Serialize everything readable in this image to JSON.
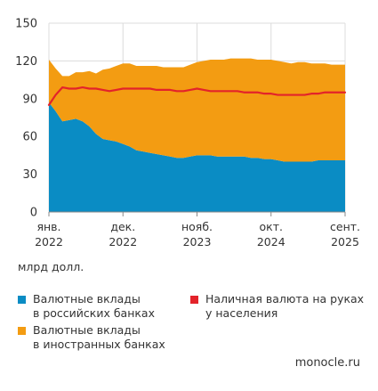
{
  "chart_data": {
    "type": "area",
    "stacked": true,
    "grid": true,
    "ylim": [
      0,
      150
    ],
    "yticks": [
      0,
      30,
      60,
      90,
      120,
      150
    ],
    "x_tick_labels": [
      {
        "x": 0,
        "line1": "янв.",
        "line2": "2022"
      },
      {
        "x": 11,
        "line1": "дек.",
        "line2": "2022"
      },
      {
        "x": 22,
        "line1": "нояб.",
        "line2": "2023"
      },
      {
        "x": 33,
        "line1": "окт.",
        "line2": "2024"
      },
      {
        "x": 44,
        "line1": "сент.",
        "line2": "2025"
      }
    ],
    "unit_label": "млрд долл.",
    "x": [
      "2022-01",
      "2022-02",
      "2022-03",
      "2022-04",
      "2022-05",
      "2022-06",
      "2022-07",
      "2022-08",
      "2022-09",
      "2022-10",
      "2022-11",
      "2022-12",
      "2023-01",
      "2023-02",
      "2023-03",
      "2023-04",
      "2023-05",
      "2023-06",
      "2023-07",
      "2023-08",
      "2023-09",
      "2023-10",
      "2023-11",
      "2023-12",
      "2024-01",
      "2024-02",
      "2024-03",
      "2024-04",
      "2024-05",
      "2024-06",
      "2024-07",
      "2024-08",
      "2024-09",
      "2024-10",
      "2024-11",
      "2024-12",
      "2025-01",
      "2025-02",
      "2025-03",
      "2025-04",
      "2025-05",
      "2025-06",
      "2025-07",
      "2025-08",
      "2025-09"
    ],
    "series": [
      {
        "name": "Валютные вклады\nв российских банках",
        "kind": "area",
        "color": "#0a8cc4",
        "values": [
          87,
          80,
          72,
          73,
          74,
          72,
          68,
          62,
          58,
          57,
          56,
          54,
          52,
          49,
          48,
          47,
          46,
          45,
          44,
          43,
          43,
          44,
          45,
          45,
          45,
          44,
          44,
          44,
          44,
          44,
          43,
          43,
          42,
          42,
          41,
          40,
          40,
          40,
          40,
          40,
          41,
          41,
          41,
          41,
          41
        ]
      },
      {
        "name": "Валютные вклады\nв иностранных банках",
        "kind": "area",
        "color": "#f39c12",
        "values": [
          34,
          34,
          36,
          35,
          37,
          39,
          44,
          48,
          55,
          57,
          60,
          64,
          66,
          67,
          68,
          69,
          70,
          70,
          71,
          72,
          72,
          73,
          74,
          75,
          76,
          77,
          77,
          78,
          78,
          78,
          79,
          78,
          79,
          79,
          79,
          79,
          78,
          79,
          79,
          78,
          77,
          77,
          76,
          76,
          76
        ]
      },
      {
        "name": "Наличная валюта на руках\nу населения",
        "kind": "line",
        "color": "#e3232a",
        "values": [
          85,
          93,
          99,
          98,
          98,
          99,
          98,
          98,
          97,
          96,
          97,
          98,
          98,
          98,
          98,
          98,
          97,
          97,
          97,
          96,
          96,
          97,
          98,
          97,
          96,
          96,
          96,
          96,
          96,
          95,
          95,
          95,
          94,
          94,
          93,
          93,
          93,
          93,
          93,
          94,
          94,
          95,
          95,
          95,
          95
        ]
      }
    ]
  },
  "source": "monocle.ru"
}
